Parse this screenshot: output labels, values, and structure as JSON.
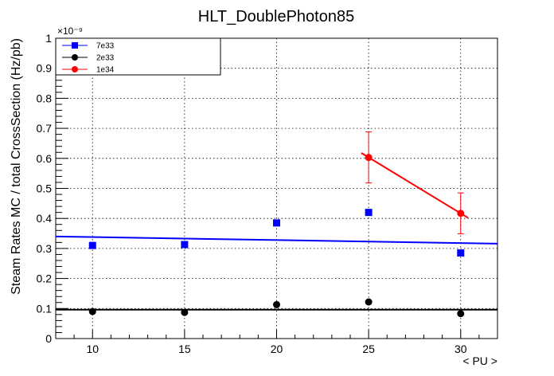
{
  "chart_data": {
    "type": "scatter",
    "title": "HLT_DoublePhoton85",
    "xlabel": "< PU >",
    "ylabel": "Steam Rates MC / total CrossSection (Hz/pb)",
    "y_exponent_label": "×10⁻⁹",
    "xlim": [
      8,
      32
    ],
    "ylim": [
      0,
      1
    ],
    "x_ticks": [
      10,
      15,
      20,
      25,
      30
    ],
    "y_ticks": [
      0,
      0.1,
      0.2,
      0.3,
      0.4,
      0.5,
      0.6,
      0.7,
      0.8,
      0.9,
      1
    ],
    "grid": true,
    "legend_position": "top-left",
    "series": [
      {
        "name": "7e33",
        "color": "#0000ff",
        "marker": "square",
        "x": [
          10,
          15,
          20,
          25,
          30
        ],
        "y": [
          0.31,
          0.313,
          0.385,
          0.42,
          0.285
        ],
        "fit": {
          "x": [
            8,
            32
          ],
          "y": [
            0.34,
            0.316
          ]
        }
      },
      {
        "name": "2e33",
        "color": "#000000",
        "marker": "circle",
        "x": [
          10,
          15,
          20,
          25,
          30
        ],
        "y": [
          0.09,
          0.087,
          0.113,
          0.122,
          0.083
        ],
        "fit": {
          "x": [
            8,
            32
          ],
          "y": [
            0.096,
            0.096
          ]
        }
      },
      {
        "name": "1e34",
        "color": "#ff0000",
        "marker": "circle",
        "x": [
          25,
          30
        ],
        "y": [
          0.603,
          0.417
        ],
        "yerr": [
          0.085,
          0.068
        ],
        "fit": {
          "x": [
            24.6,
            30.4
          ],
          "y": [
            0.618,
            0.402
          ]
        }
      }
    ]
  }
}
